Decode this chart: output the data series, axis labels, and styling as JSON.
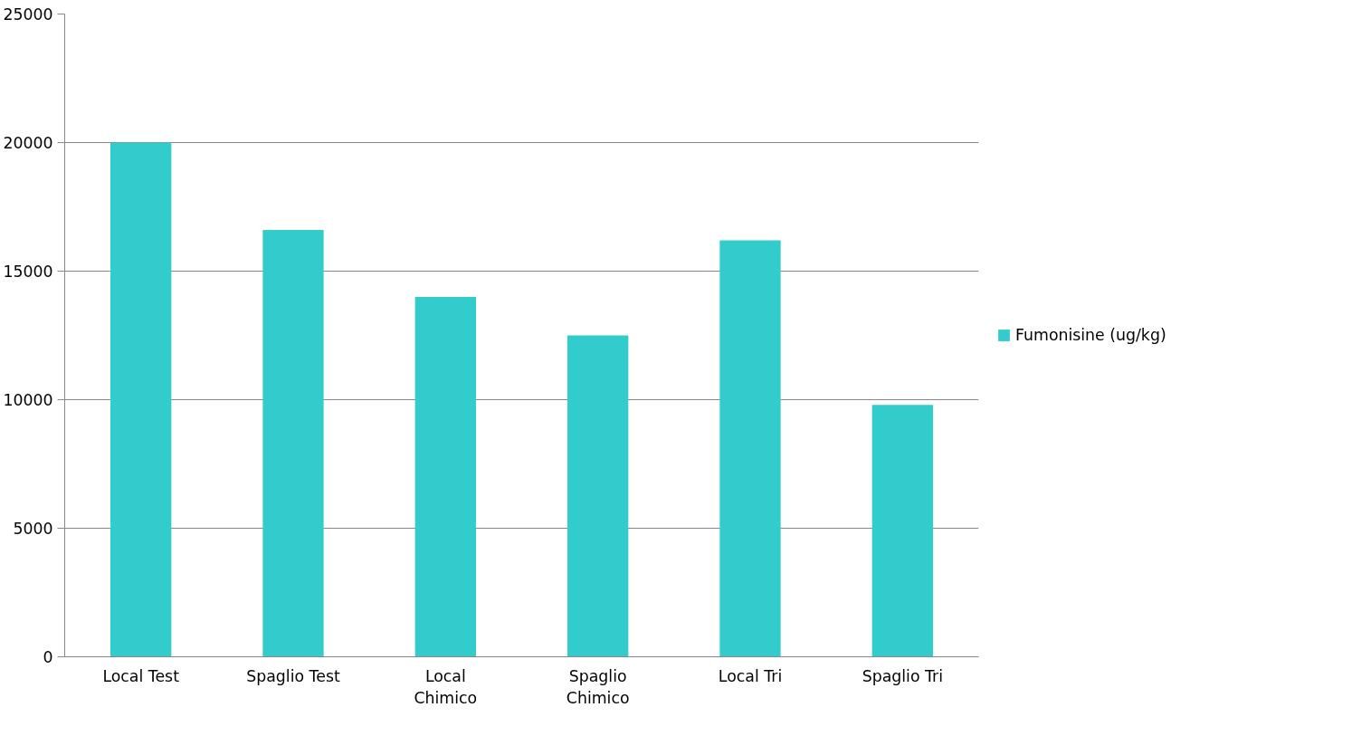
{
  "chart_data": {
    "type": "bar",
    "categories": [
      "Local Test",
      "Spaglio Test",
      "Local Chimico",
      "Spaglio Chimico",
      "Local Tri",
      "Spaglio Tri"
    ],
    "series": [
      {
        "name": "Fumonisine (ug/kg)",
        "color": "#33cccc",
        "values": [
          20000,
          16600,
          14000,
          12500,
          16200,
          9800
        ]
      }
    ],
    "ylim": [
      0,
      25000
    ],
    "yticks": [
      0,
      5000,
      10000,
      15000,
      20000,
      25000
    ],
    "grid": "y",
    "legend": "right"
  }
}
